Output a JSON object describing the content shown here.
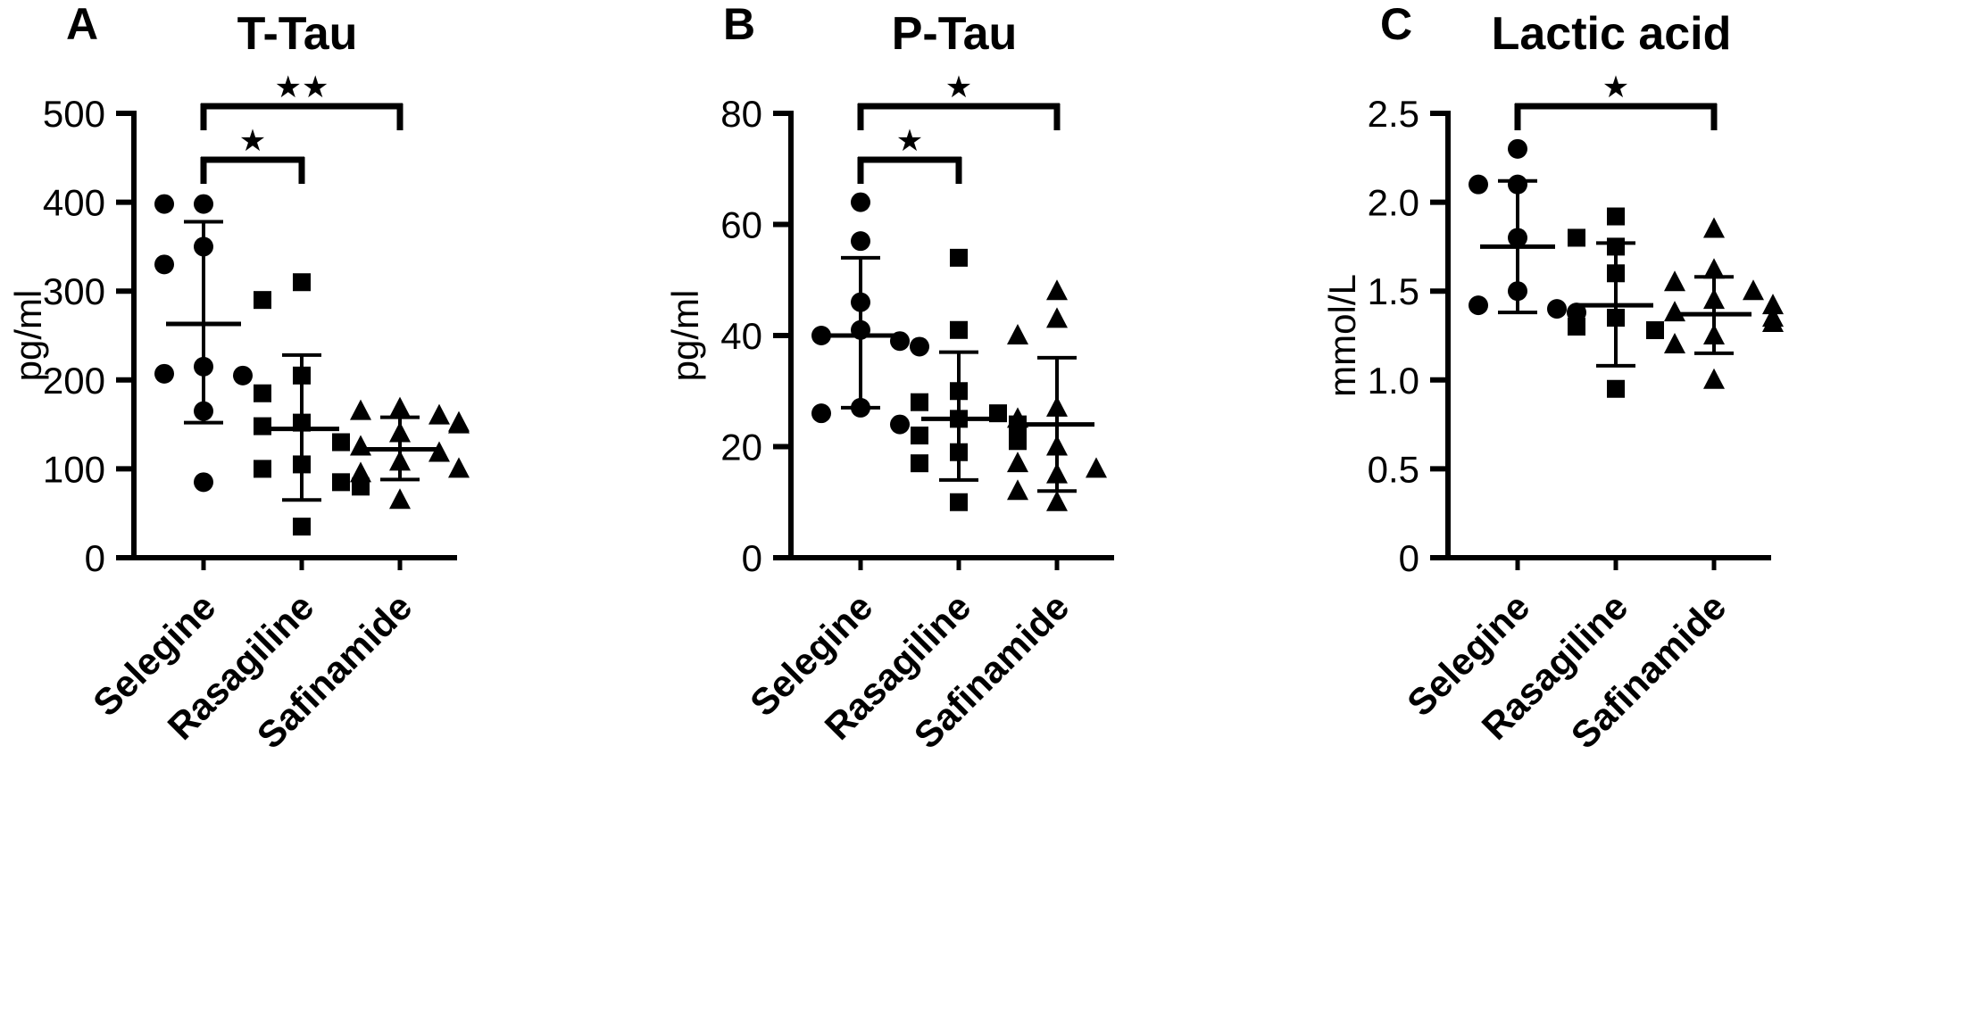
{
  "figure_background": "#ffffff",
  "ink_color": "#000000",
  "chart_data": [
    {
      "type": "scatter",
      "panel_letter": "A",
      "title": "T-Tau",
      "ylabel": "pg/ml",
      "ylim": [
        0,
        500
      ],
      "ytick_values": [
        0,
        100,
        200,
        300,
        400,
        500
      ],
      "ytick_labels": [
        "0",
        "100",
        "200",
        "300",
        "400",
        "500"
      ],
      "categories": [
        "Selegine",
        "Rasagiline",
        "Safinamide"
      ],
      "legend": "none",
      "grid": false,
      "series": [
        {
          "name": "Selegine",
          "marker": "circle",
          "values": [
            398,
            398,
            350,
            330,
            215,
            207,
            205,
            165,
            85
          ],
          "mean": 263,
          "err_low": 152,
          "err_high": 378
        },
        {
          "name": "Rasagiline",
          "marker": "square",
          "values": [
            310,
            290,
            205,
            185,
            152,
            148,
            130,
            105,
            100,
            85,
            80,
            35
          ],
          "mean": 145,
          "err_low": 65,
          "err_high": 228
        },
        {
          "name": "Safinamide",
          "marker": "triangle",
          "values": [
            168,
            165,
            160,
            152,
            150,
            140,
            125,
            118,
            108,
            100,
            95,
            65
          ],
          "mean": 122,
          "err_low": 88,
          "err_high": 158
        }
      ],
      "comparisons": [
        {
          "group_a": 0,
          "group_b": 1,
          "stars": "★",
          "level": 1
        },
        {
          "group_a": 0,
          "group_b": 2,
          "stars": "★★",
          "level": 2
        }
      ]
    },
    {
      "type": "scatter",
      "panel_letter": "B",
      "title": "P-Tau",
      "ylabel": "pg/ml",
      "ylim": [
        0,
        80
      ],
      "ytick_values": [
        0,
        20,
        40,
        60,
        80
      ],
      "ytick_labels": [
        "0",
        "20",
        "40",
        "60",
        "80"
      ],
      "categories": [
        "Selegine",
        "Rasagiline",
        "Safinamide"
      ],
      "legend": "none",
      "grid": false,
      "series": [
        {
          "name": "Selegine",
          "marker": "circle",
          "values": [
            64,
            57,
            46,
            41,
            40,
            39,
            38,
            27,
            26,
            24
          ],
          "mean": 40,
          "err_low": 27,
          "err_high": 54
        },
        {
          "name": "Rasagiline",
          "marker": "square",
          "values": [
            54,
            41,
            30,
            28,
            26,
            25,
            24,
            22,
            21,
            19,
            17,
            10
          ],
          "mean": 25,
          "err_low": 14,
          "err_high": 37
        },
        {
          "name": "Safinamide",
          "marker": "triangle",
          "values": [
            48,
            43,
            40,
            27,
            25,
            20,
            17,
            16,
            15,
            12,
            10
          ],
          "mean": 24,
          "err_low": 12,
          "err_high": 36
        }
      ],
      "comparisons": [
        {
          "group_a": 0,
          "group_b": 1,
          "stars": "★",
          "level": 1
        },
        {
          "group_a": 0,
          "group_b": 2,
          "stars": "★",
          "level": 2
        }
      ]
    },
    {
      "type": "scatter",
      "panel_letter": "C",
      "title": "Lactic acid",
      "ylabel": "mmol/L",
      "ylim": [
        0,
        2.5
      ],
      "ytick_values": [
        0,
        0.5,
        1.0,
        1.5,
        2.0,
        2.5
      ],
      "ytick_labels": [
        "0",
        "0.5",
        "1.0",
        "1.5",
        "2.0",
        "2.5"
      ],
      "categories": [
        "Selegine",
        "Rasagiline",
        "Safinamide"
      ],
      "legend": "none",
      "grid": false,
      "series": [
        {
          "name": "Selegine",
          "marker": "circle",
          "values": [
            2.3,
            2.1,
            2.1,
            1.8,
            1.5,
            1.42,
            1.4,
            1.38
          ],
          "mean": 1.75,
          "err_low": 1.38,
          "err_high": 2.12
        },
        {
          "name": "Rasagiline",
          "marker": "square",
          "values": [
            1.92,
            1.8,
            1.75,
            1.6,
            1.35,
            1.3,
            1.28,
            0.95
          ],
          "mean": 1.42,
          "err_low": 1.08,
          "err_high": 1.77
        },
        {
          "name": "Safinamide",
          "marker": "triangle",
          "values": [
            1.85,
            1.62,
            1.55,
            1.5,
            1.45,
            1.42,
            1.38,
            1.35,
            1.32,
            1.25,
            1.2,
            1.0
          ],
          "mean": 1.37,
          "err_low": 1.15,
          "err_high": 1.58
        }
      ],
      "comparisons": [
        {
          "group_a": 0,
          "group_b": 2,
          "stars": "★",
          "level": 2
        }
      ]
    }
  ]
}
